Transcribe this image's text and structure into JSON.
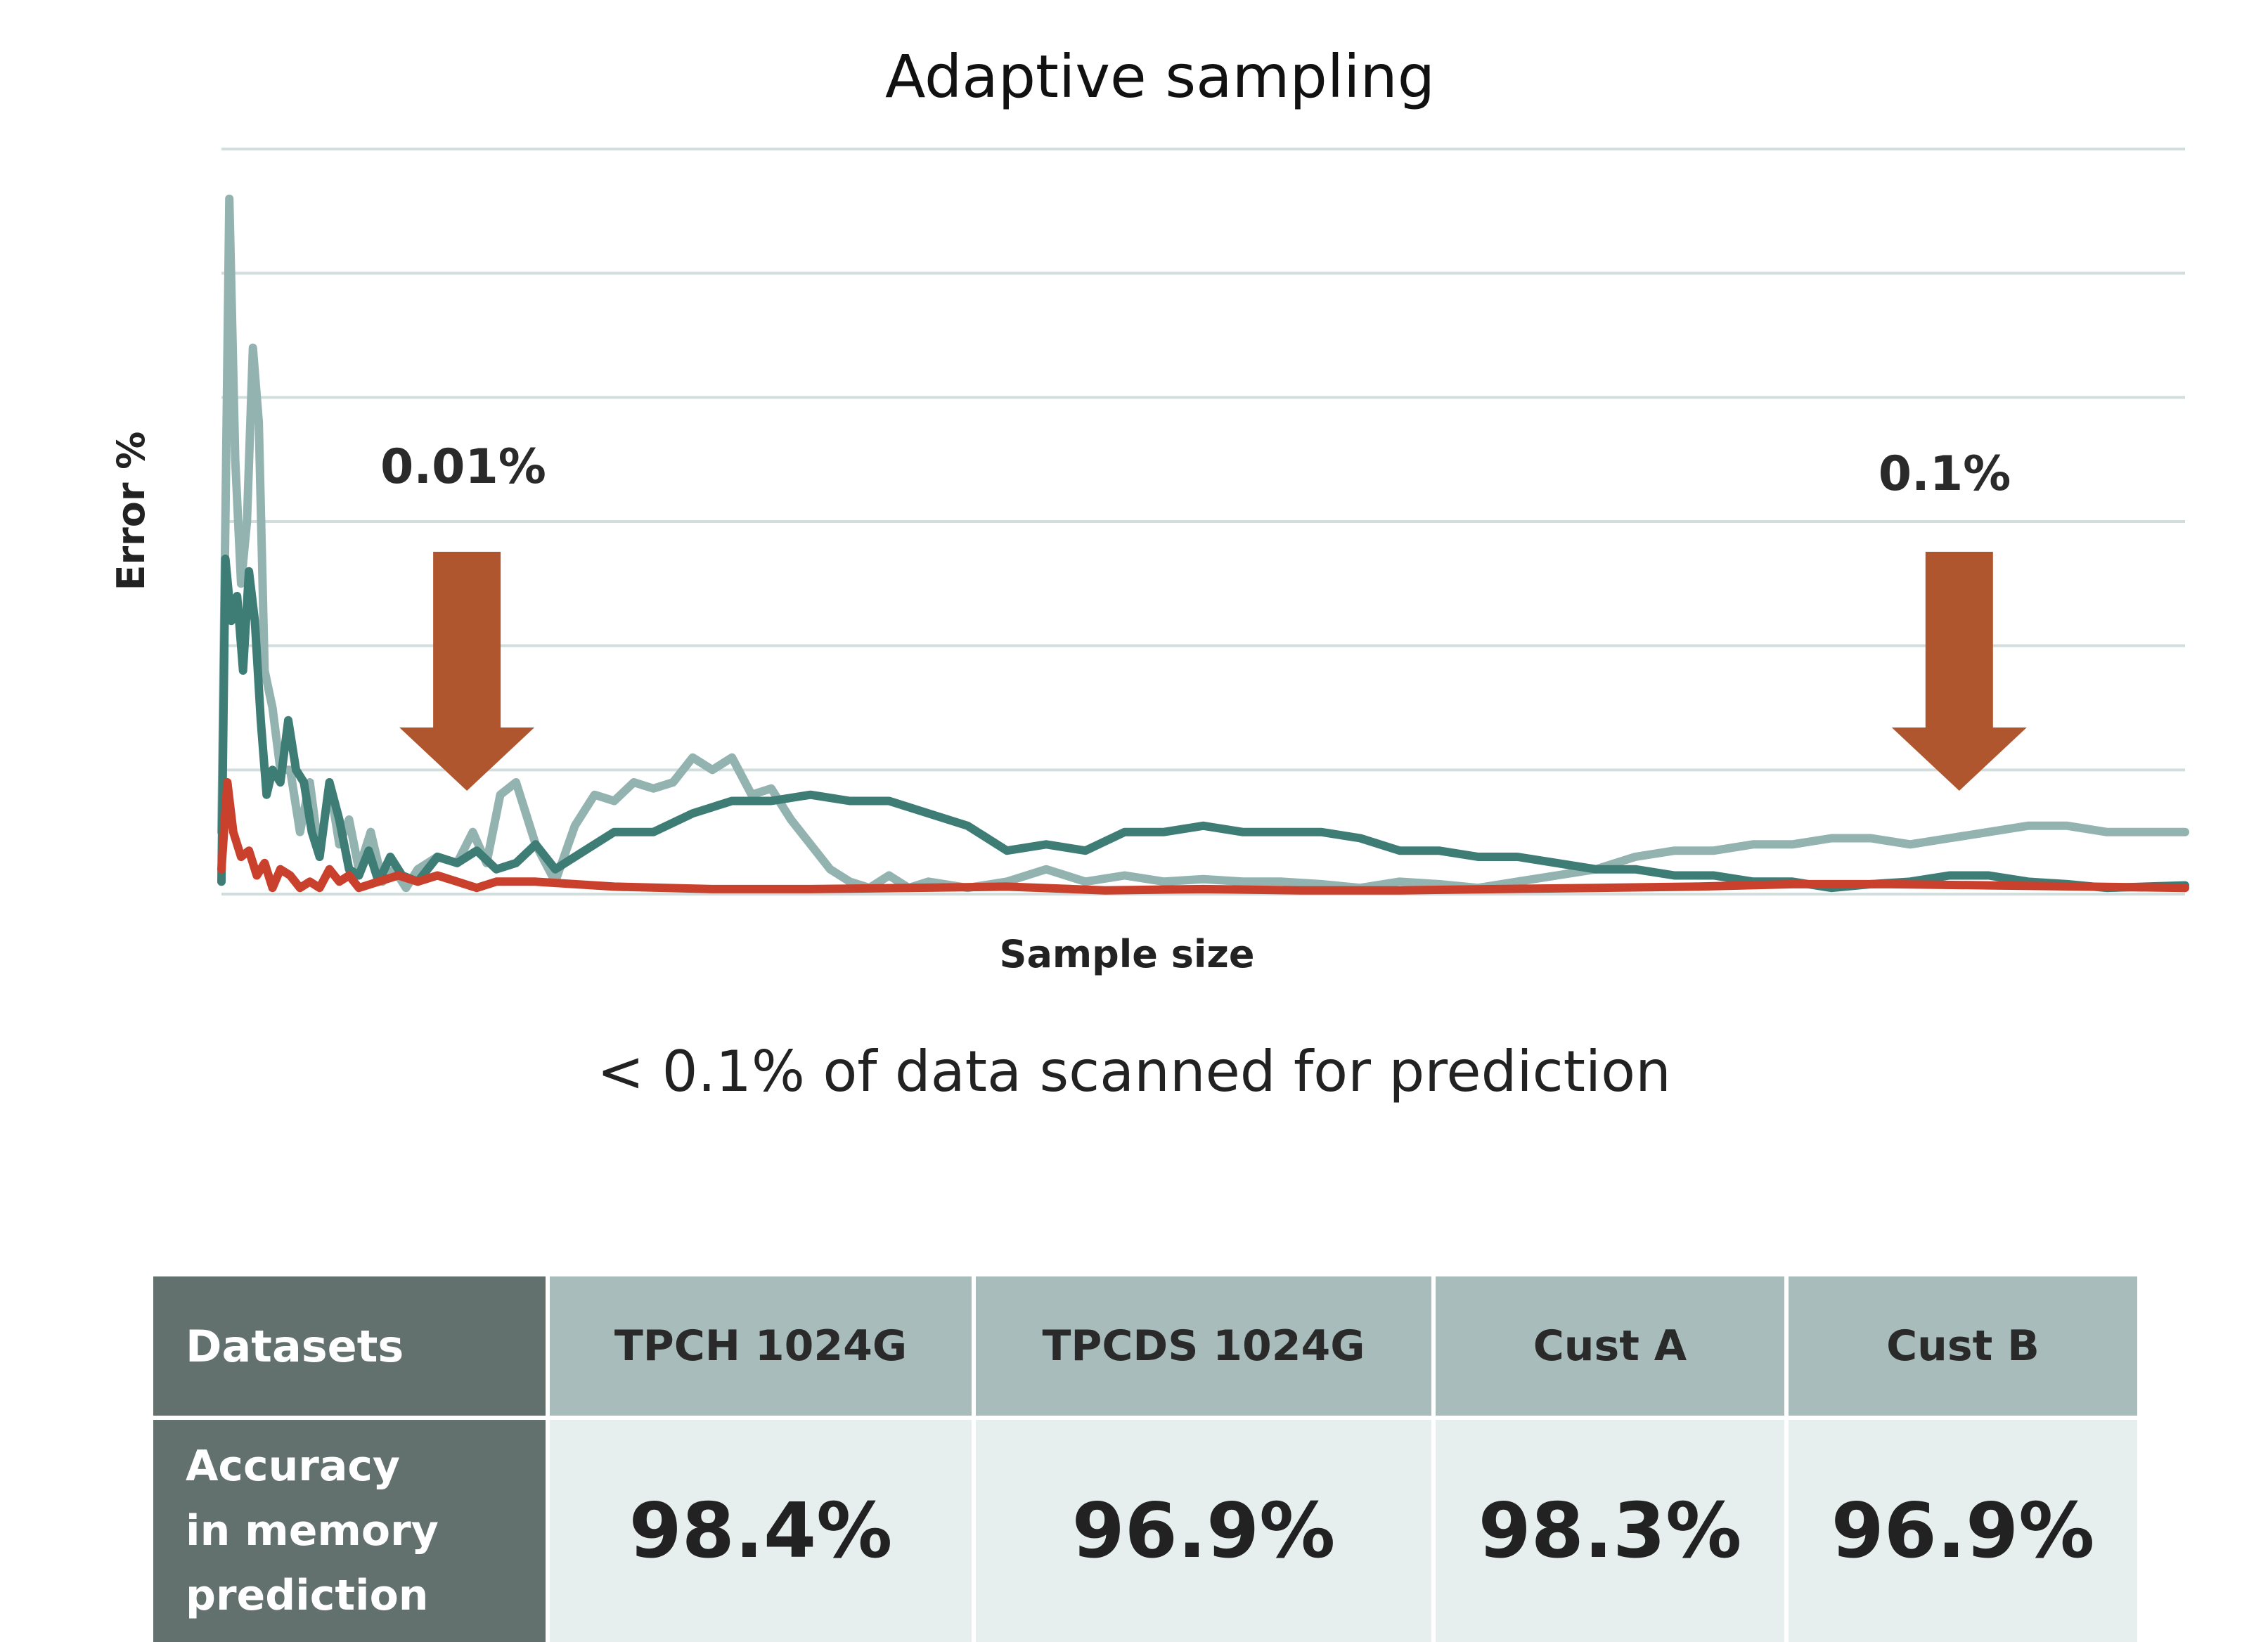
{
  "chart_data": {
    "type": "line",
    "title": "Adaptive sampling",
    "xlabel": "Sample size",
    "ylabel": "Error %",
    "ylim": [
      0,
      6
    ],
    "xlim": [
      0,
      100
    ],
    "grid": true,
    "series": [
      {
        "name": "light-teal",
        "color": "#93b3b0",
        "x": [
          0,
          0.2,
          0.4,
          0.7,
          1.0,
          1.3,
          1.6,
          1.9,
          2.2,
          2.6,
          3.0,
          3.5,
          4.0,
          4.5,
          5.0,
          5.5,
          6.0,
          6.5,
          7.0,
          7.6,
          8.2,
          8.8,
          9.4,
          10.0,
          11.0,
          12.0,
          12.8,
          13.5,
          14.2,
          15.0,
          16.0,
          17.0,
          18.0,
          19.0,
          20.0,
          21.0,
          22.0,
          23.0,
          24.0,
          25.0,
          26.0,
          27.0,
          28.0,
          29.0,
          30.0,
          31.0,
          32.0,
          33.0,
          34.0,
          35.0,
          36.0,
          38.0,
          40.0,
          42.0,
          44.0,
          46.0,
          48.0,
          50.0,
          52.0,
          54.0,
          56.0,
          58.0,
          60.0,
          62.0,
          64.0,
          66.0,
          68.0,
          70.0,
          71.0,
          72.0,
          74.0,
          76.0,
          78.0,
          80.0,
          82.0,
          84.0,
          86.0,
          88.0,
          90.0,
          92.0,
          94.0,
          96.0,
          98.0,
          100.0
        ],
        "y": [
          0.5,
          3.0,
          5.6,
          3.5,
          2.5,
          3.0,
          4.4,
          3.8,
          1.8,
          1.5,
          1.0,
          1.0,
          0.5,
          0.9,
          0.3,
          0.9,
          0.4,
          0.6,
          0.2,
          0.5,
          0.1,
          0.2,
          0.05,
          0.2,
          0.3,
          0.25,
          0.5,
          0.25,
          0.8,
          0.9,
          0.4,
          0.1,
          0.55,
          0.8,
          0.75,
          0.9,
          0.85,
          0.9,
          1.1,
          1.0,
          1.1,
          0.8,
          0.85,
          0.6,
          0.4,
          0.2,
          0.1,
          0.05,
          0.15,
          0.05,
          0.1,
          0.05,
          0.1,
          0.2,
          0.1,
          0.15,
          0.1,
          0.12,
          0.1,
          0.1,
          0.08,
          0.05,
          0.1,
          0.08,
          0.05,
          0.1,
          0.15,
          0.2,
          0.25,
          0.3,
          0.35,
          0.35,
          0.4,
          0.4,
          0.45,
          0.45,
          0.4,
          0.45,
          0.5,
          0.55,
          0.55,
          0.5,
          0.5,
          0.5
        ]
      },
      {
        "name": "dark-teal",
        "color": "#3e7c76",
        "x": [
          0,
          0.2,
          0.5,
          0.8,
          1.1,
          1.4,
          1.7,
          2.0,
          2.3,
          2.6,
          3.0,
          3.4,
          3.8,
          4.2,
          4.6,
          5.0,
          5.5,
          6.0,
          6.5,
          7.0,
          7.5,
          8.0,
          8.6,
          9.2,
          10.0,
          11.0,
          12.0,
          13.0,
          14.0,
          15.0,
          16.0,
          17.0,
          18.0,
          20.0,
          22.0,
          24.0,
          26.0,
          28.0,
          30.0,
          32.0,
          34.0,
          36.0,
          38.0,
          40.0,
          42.0,
          44.0,
          46.0,
          48.0,
          50.0,
          52.0,
          54.0,
          56.0,
          58.0,
          60.0,
          62.0,
          64.0,
          66.0,
          68.0,
          70.0,
          72.0,
          74.0,
          76.0,
          78.0,
          80.0,
          82.0,
          84.0,
          86.0,
          88.0,
          90.0,
          92.0,
          94.0,
          96.0,
          98.0,
          100.0
        ],
        "y": [
          0.1,
          2.7,
          2.2,
          2.4,
          1.8,
          2.6,
          2.2,
          1.4,
          0.8,
          1.0,
          0.9,
          1.4,
          1.0,
          0.9,
          0.5,
          0.3,
          0.9,
          0.6,
          0.2,
          0.15,
          0.35,
          0.1,
          0.3,
          0.15,
          0.1,
          0.3,
          0.25,
          0.35,
          0.2,
          0.25,
          0.4,
          0.2,
          0.3,
          0.5,
          0.5,
          0.65,
          0.75,
          0.75,
          0.8,
          0.75,
          0.75,
          0.65,
          0.55,
          0.35,
          0.4,
          0.35,
          0.5,
          0.5,
          0.55,
          0.5,
          0.5,
          0.5,
          0.45,
          0.35,
          0.35,
          0.3,
          0.3,
          0.25,
          0.2,
          0.2,
          0.15,
          0.15,
          0.1,
          0.1,
          0.05,
          0.08,
          0.1,
          0.15,
          0.15,
          0.1,
          0.08,
          0.05,
          0.06,
          0.07
        ]
      },
      {
        "name": "red",
        "color": "#c9412c",
        "x": [
          0,
          0.3,
          0.6,
          1.0,
          1.4,
          1.8,
          2.2,
          2.6,
          3.0,
          3.5,
          4.0,
          4.5,
          5.0,
          5.5,
          6.0,
          6.5,
          7.0,
          8.0,
          9.0,
          10.0,
          11.0,
          12.0,
          13.0,
          14.0,
          16.0,
          18.0,
          20.0,
          25.0,
          30.0,
          35.0,
          40.0,
          45.0,
          50.0,
          55.0,
          60.0,
          65.0,
          70.0,
          75.0,
          80.0,
          85.0,
          90.0,
          95.0,
          100.0
        ],
        "y": [
          0.2,
          0.9,
          0.5,
          0.3,
          0.35,
          0.15,
          0.25,
          0.05,
          0.2,
          0.15,
          0.05,
          0.1,
          0.05,
          0.2,
          0.1,
          0.15,
          0.05,
          0.1,
          0.15,
          0.1,
          0.15,
          0.1,
          0.05,
          0.1,
          0.1,
          0.08,
          0.06,
          0.04,
          0.04,
          0.05,
          0.06,
          0.03,
          0.04,
          0.03,
          0.03,
          0.04,
          0.05,
          0.06,
          0.08,
          0.08,
          0.07,
          0.06,
          0.05
        ]
      }
    ],
    "annotations": [
      {
        "label": "0.01%",
        "x": 12.5
      },
      {
        "label": "0.1%",
        "x": 88.5
      }
    ]
  },
  "caption": "< 0.1% of data scanned for prediction",
  "table": {
    "header_label": "Datasets",
    "row_label_lines": [
      "Accuracy",
      "in memory",
      "prediction"
    ],
    "columns": [
      "TPCH 1024G",
      "TPCDS 1024G",
      "Cust A",
      "Cust B"
    ],
    "values": [
      "98.4%",
      "96.9%",
      "98.3%",
      "96.9%"
    ]
  },
  "colors": {
    "arrow": "#b0562e",
    "grid": "#d2dedd",
    "table_dark": "#62706e",
    "table_header": "#a9bcbc",
    "table_body": "#e7efee"
  }
}
